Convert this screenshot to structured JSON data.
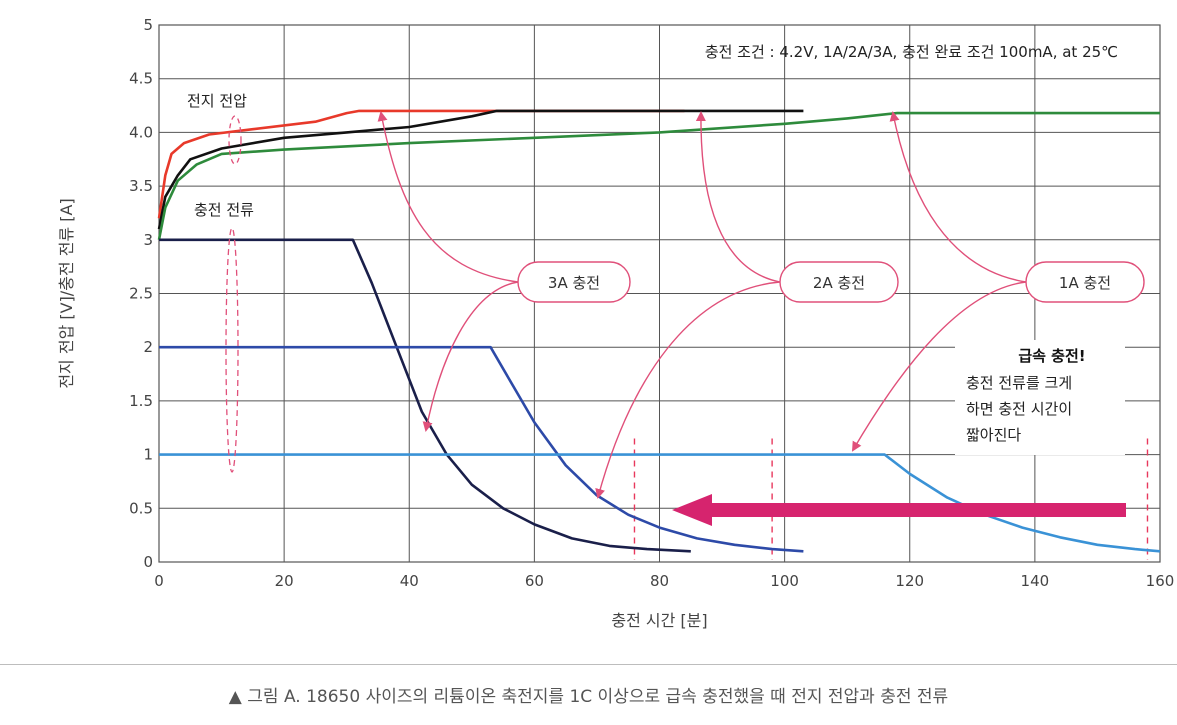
{
  "chart_data": {
    "type": "line",
    "title": "",
    "xlabel": "충전 시간 [분]",
    "ylabel": "전지 전압 [V]/충전 전류 [A]",
    "xlim": [
      0,
      160
    ],
    "ylim": [
      0,
      5
    ],
    "x_ticks": [
      0,
      20,
      40,
      60,
      80,
      100,
      120,
      140,
      160
    ],
    "y_ticks": [
      {
        "value": 0,
        "label": "0"
      },
      {
        "value": 0.5,
        "label": "0.5"
      },
      {
        "value": 1,
        "label": "1"
      },
      {
        "value": 1.5,
        "label": "1.5"
      },
      {
        "value": 2,
        "label": "2"
      },
      {
        "value": 2.5,
        "label": "2.5"
      },
      {
        "value": 3,
        "label": "3"
      },
      {
        "value": 3.5,
        "label": "3.5"
      },
      {
        "value": 4,
        "label": "4.0"
      },
      {
        "value": 4.5,
        "label": "4.5"
      },
      {
        "value": 5,
        "label": "5"
      }
    ],
    "grid": true,
    "series": [
      {
        "kind": "voltage",
        "rate": "3A",
        "color": "#e8392a",
        "points": [
          [
            0,
            3.2
          ],
          [
            1,
            3.6
          ],
          [
            2,
            3.8
          ],
          [
            4,
            3.9
          ],
          [
            8,
            3.98
          ],
          [
            15,
            4.03
          ],
          [
            25,
            4.1
          ],
          [
            30,
            4.18
          ],
          [
            32,
            4.2
          ],
          [
            84,
            4.2
          ]
        ]
      },
      {
        "kind": "voltage",
        "rate": "2A",
        "color": "#111111",
        "points": [
          [
            0,
            3.1
          ],
          [
            1,
            3.4
          ],
          [
            3,
            3.6
          ],
          [
            5,
            3.75
          ],
          [
            10,
            3.85
          ],
          [
            20,
            3.95
          ],
          [
            30,
            4.0
          ],
          [
            40,
            4.05
          ],
          [
            50,
            4.15
          ],
          [
            54,
            4.2
          ],
          [
            103,
            4.2
          ]
        ]
      },
      {
        "kind": "voltage",
        "rate": "1A",
        "color": "#2e8b3c",
        "points": [
          [
            0,
            3.0
          ],
          [
            1,
            3.3
          ],
          [
            3,
            3.55
          ],
          [
            6,
            3.7
          ],
          [
            10,
            3.8
          ],
          [
            20,
            3.84
          ],
          [
            40,
            3.9
          ],
          [
            60,
            3.95
          ],
          [
            80,
            4.0
          ],
          [
            100,
            4.08
          ],
          [
            110,
            4.13
          ],
          [
            118,
            4.18
          ],
          [
            160,
            4.18
          ]
        ]
      },
      {
        "kind": "current",
        "rate": "3A",
        "color": "#1a1f4a",
        "points": [
          [
            0,
            3
          ],
          [
            31,
            3
          ],
          [
            34,
            2.6
          ],
          [
            38,
            2.0
          ],
          [
            42,
            1.4
          ],
          [
            46,
            1.0
          ],
          [
            50,
            0.72
          ],
          [
            55,
            0.5
          ],
          [
            60,
            0.35
          ],
          [
            66,
            0.22
          ],
          [
            72,
            0.15
          ],
          [
            78,
            0.12
          ],
          [
            85,
            0.1
          ]
        ]
      },
      {
        "kind": "current",
        "rate": "2A",
        "color": "#2d4aa8",
        "points": [
          [
            0,
            2
          ],
          [
            53,
            2
          ],
          [
            56,
            1.7
          ],
          [
            60,
            1.3
          ],
          [
            65,
            0.9
          ],
          [
            70,
            0.62
          ],
          [
            75,
            0.44
          ],
          [
            80,
            0.32
          ],
          [
            86,
            0.22
          ],
          [
            92,
            0.16
          ],
          [
            98,
            0.12
          ],
          [
            103,
            0.1
          ]
        ]
      },
      {
        "kind": "current",
        "rate": "1A",
        "color": "#3a92d6",
        "points": [
          [
            0,
            1
          ],
          [
            116,
            1
          ],
          [
            120,
            0.82
          ],
          [
            126,
            0.6
          ],
          [
            132,
            0.44
          ],
          [
            138,
            0.32
          ],
          [
            144,
            0.23
          ],
          [
            150,
            0.16
          ],
          [
            156,
            0.12
          ],
          [
            160,
            0.1
          ]
        ]
      }
    ],
    "completion_markers": [
      76,
      98,
      158
    ],
    "annotations": {
      "condition": "충전 조건 : 4.2V, 1A/2A/3A, 충전 완료 조건 100mA, at 25℃",
      "voltage_label": "전지 전압",
      "current_label": "충전 전류",
      "callout_3a": "3A 충전",
      "callout_2a": "2A 충전",
      "callout_1a": "1A 충전",
      "fast_title": "급속 충전!",
      "fast_line1": "충전 전류를 크게",
      "fast_line2": "하면 충전 시간이",
      "fast_line3": "짧아진다"
    }
  },
  "caption": "▲ 그림 A. 18650 사이즈의 리튬이온 축전지를 1C 이상으로 급속 충전했을 때 전지 전압과 충전 전류",
  "colors": {
    "grid": "#555555",
    "callout": "#e0507a",
    "arrow": "#d6246e"
  }
}
